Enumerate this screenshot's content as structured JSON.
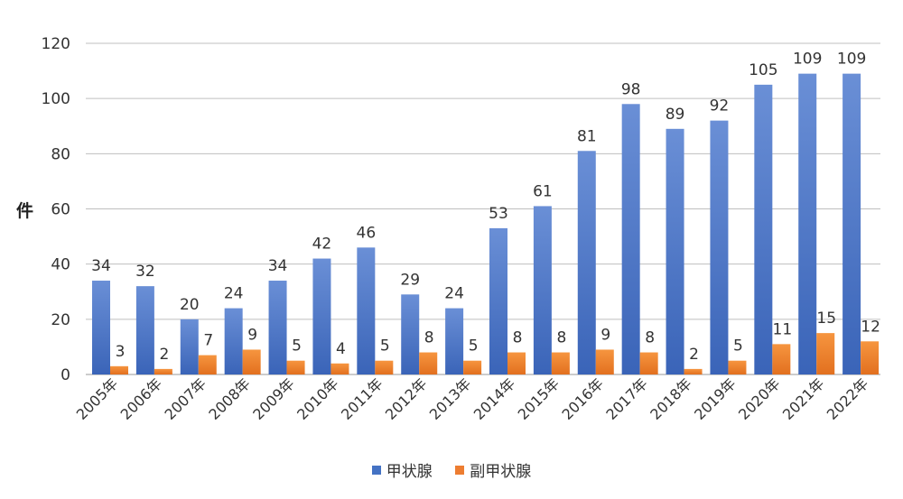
{
  "chart_data": {
    "type": "bar",
    "categories": [
      "2005年",
      "2006年",
      "2007年",
      "2008年",
      "2009年",
      "2010年",
      "2011年",
      "2012年",
      "2013年",
      "2014年",
      "2015年",
      "2016年",
      "2017年",
      "2018年",
      "2019年",
      "2020年",
      "2021年",
      "2022年"
    ],
    "series": [
      {
        "name": "甲状腺",
        "color": "#4472C4",
        "values": [
          34,
          32,
          20,
          24,
          34,
          42,
          46,
          29,
          24,
          53,
          61,
          81,
          98,
          89,
          92,
          105,
          109,
          109
        ]
      },
      {
        "name": "副甲状腺",
        "color": "#ED7D31",
        "values": [
          3,
          2,
          7,
          9,
          5,
          4,
          5,
          8,
          5,
          8,
          8,
          9,
          8,
          2,
          5,
          11,
          15,
          12
        ]
      }
    ],
    "ylabel": "件",
    "ylim": [
      0,
      120
    ],
    "yticks": [
      "0",
      "20",
      "40",
      "60",
      "80",
      "100",
      "120"
    ],
    "grid": true,
    "legend": "bottom"
  }
}
